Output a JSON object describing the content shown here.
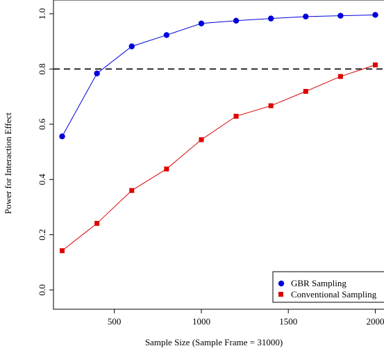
{
  "chart_data": {
    "type": "line",
    "title": "",
    "xlabel": "Sample Size (Sample Frame = 31000)",
    "ylabel": "Power for Interaction Effect",
    "xlim": [
      150,
      2050
    ],
    "ylim": [
      -0.07,
      1.05
    ],
    "x_ticks": [
      500,
      1000,
      1500,
      2000
    ],
    "y_ticks": [
      0.0,
      0.2,
      0.4,
      0.6,
      0.8,
      1.0
    ],
    "x_tick_labels": [
      "500",
      "1000",
      "1500",
      "2000"
    ],
    "y_tick_labels": [
      "0.0",
      "0.2",
      "0.4",
      "0.6",
      "0.8",
      "1.0"
    ],
    "reference_line": {
      "y": 0.8,
      "style": "dashed",
      "color": "#000000"
    },
    "x": [
      200,
      400,
      600,
      800,
      1000,
      1200,
      1400,
      1600,
      1800,
      2000
    ],
    "series": [
      {
        "name": "GBR Sampling",
        "marker": "circle",
        "color": "#0000dd",
        "values": [
          0.556,
          0.784,
          0.882,
          0.923,
          0.965,
          0.975,
          0.983,
          0.99,
          0.993,
          0.996
        ]
      },
      {
        "name": "Conventional Sampling",
        "marker": "square",
        "color": "#dd0000",
        "values": [
          0.142,
          0.241,
          0.36,
          0.438,
          0.544,
          0.629,
          0.667,
          0.719,
          0.773,
          0.815
        ]
      }
    ],
    "legend_position": "bottom-right",
    "grid": false
  }
}
